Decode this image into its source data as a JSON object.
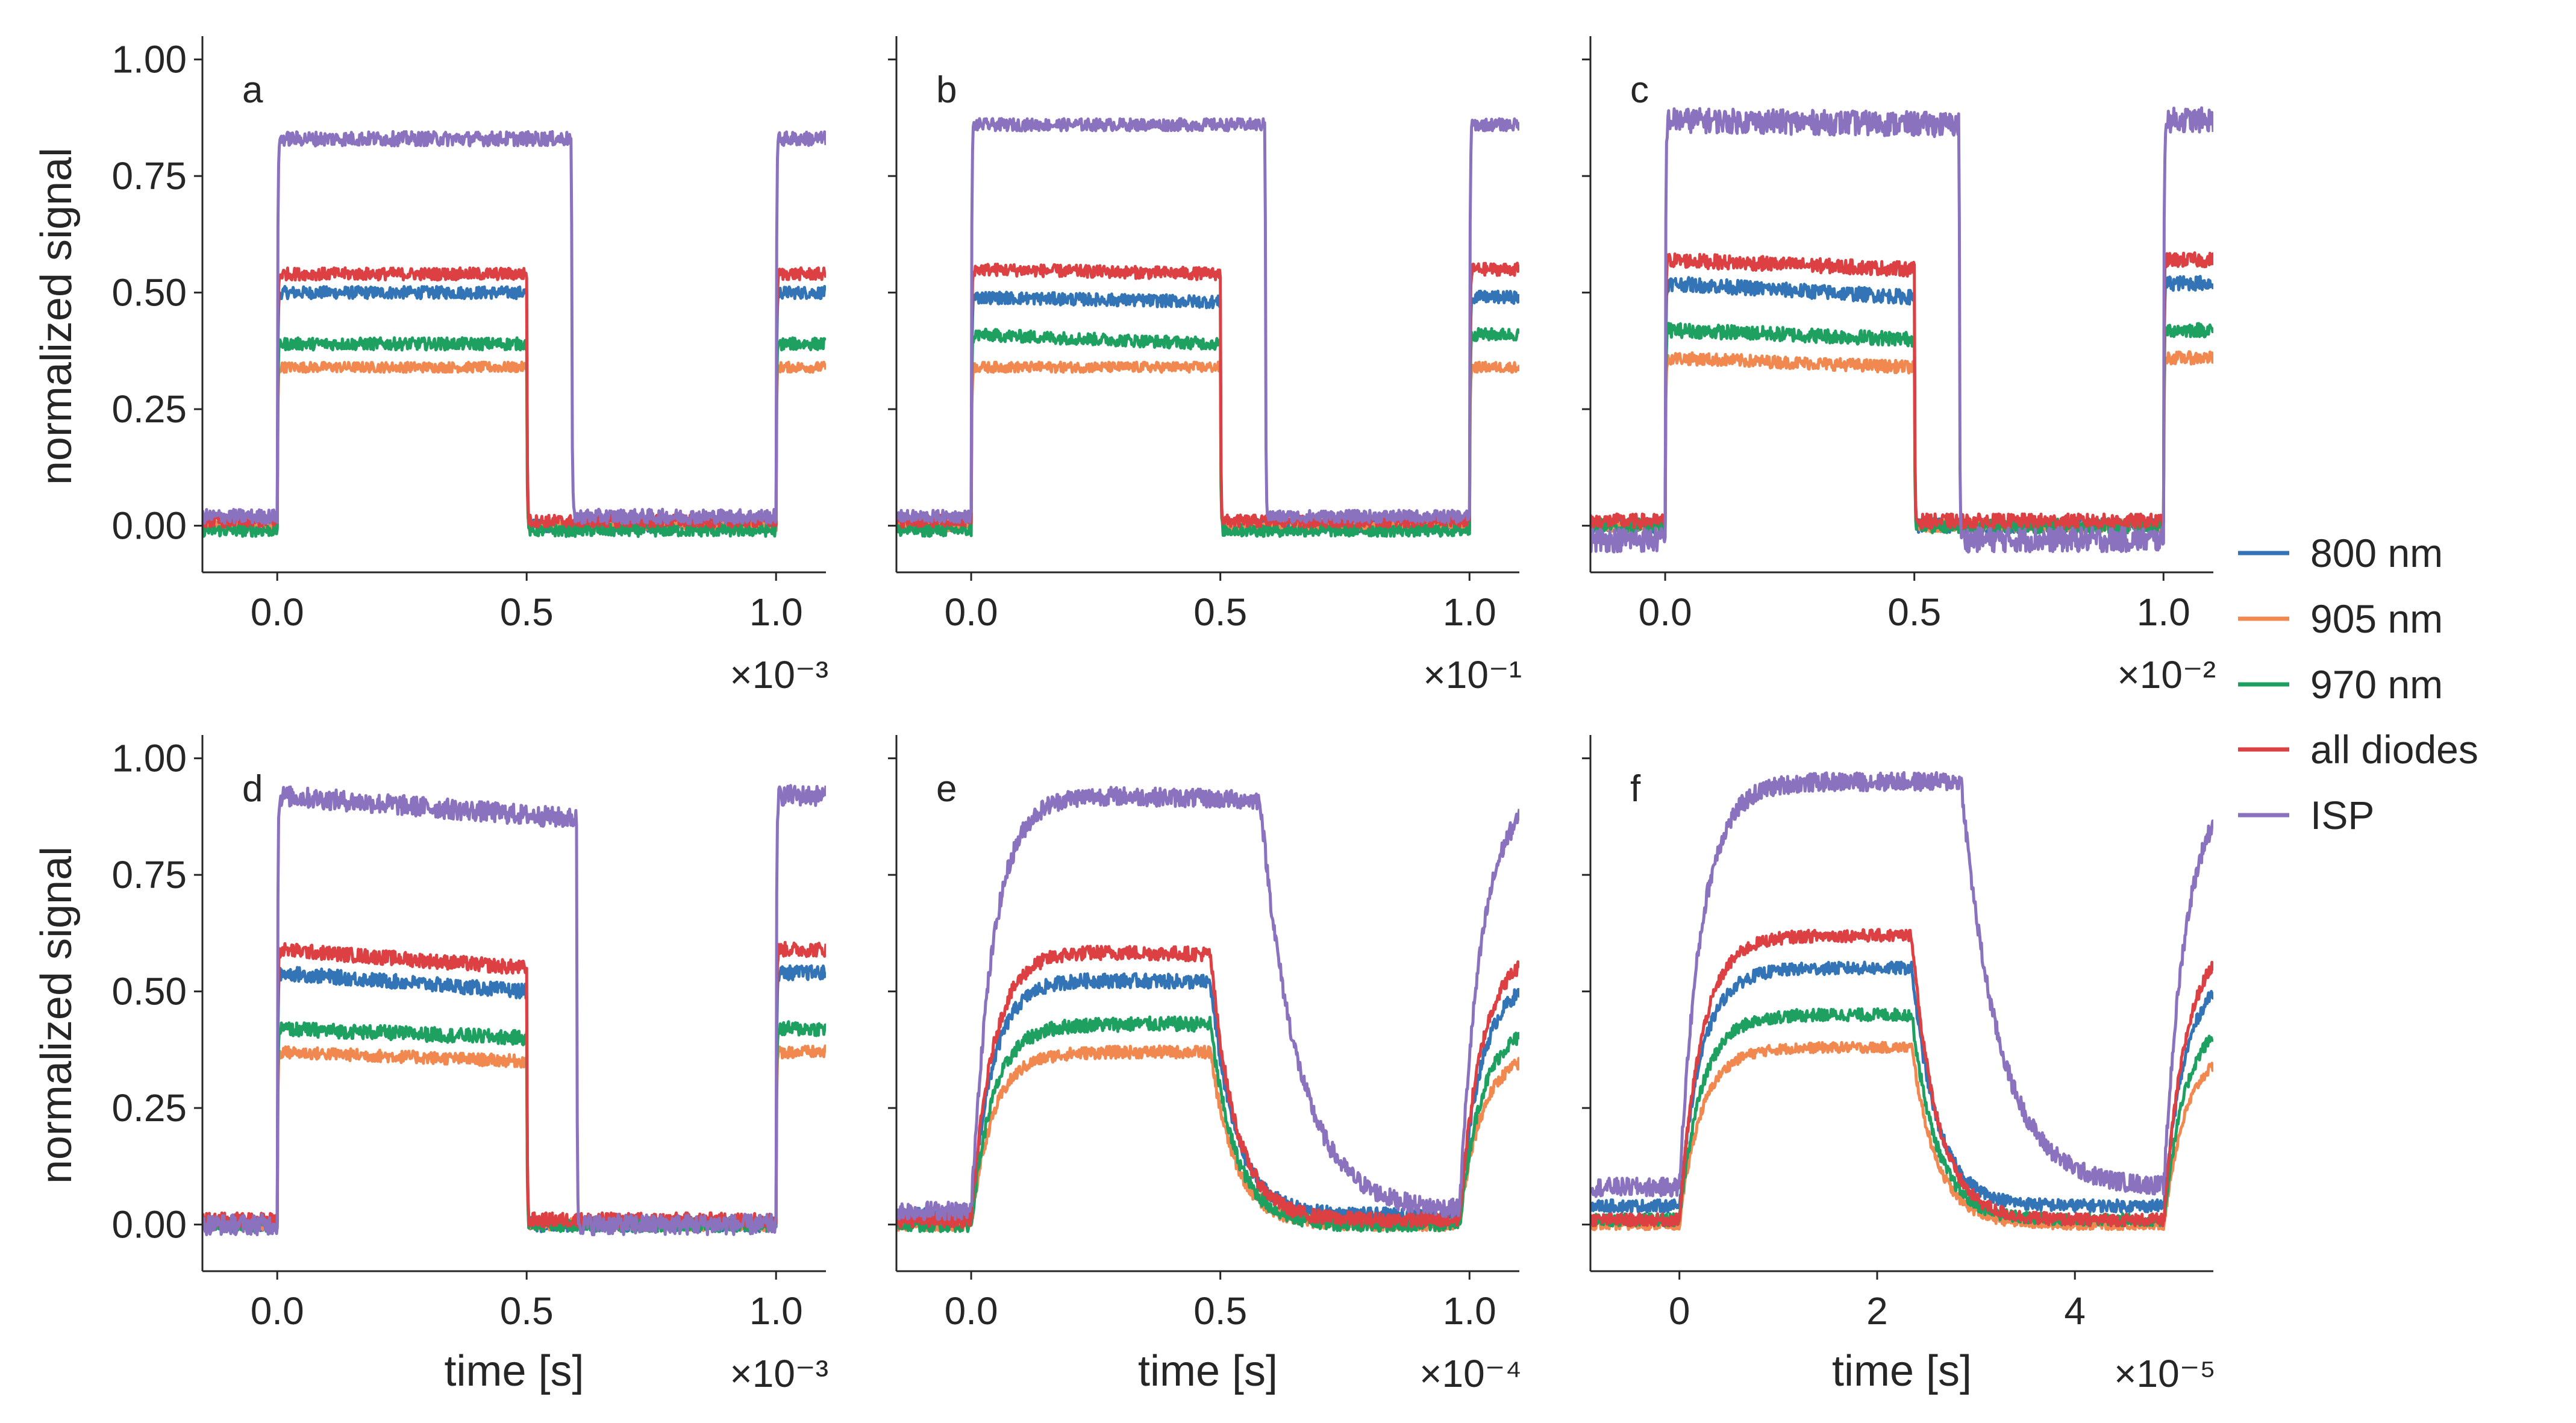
{
  "figure": {
    "ylabel": "normalized signal",
    "xlabel": "time [s]",
    "colors": {
      "800 nm": "#3274b5",
      "905 nm": "#f0884f",
      "970 nm": "#1ea160",
      "all diodes": "#dc4043",
      "ISP": "#8a72bf"
    },
    "legend_position": "right-middle"
  },
  "legend": {
    "items": [
      {
        "label": "800 nm",
        "color": "#3274b5"
      },
      {
        "label": "905 nm",
        "color": "#f0884f"
      },
      {
        "label": "970 nm",
        "color": "#1ea160"
      },
      {
        "label": "all diodes",
        "color": "#dc4043"
      },
      {
        "label": "ISP",
        "color": "#8a72bf"
      }
    ]
  },
  "chart_data": [
    {
      "panel": "a",
      "type": "line",
      "xlim": [
        -0.15,
        1.1
      ],
      "ylim": [
        -0.1,
        1.05
      ],
      "xticks": [
        "0.0",
        "0.5",
        "1.0"
      ],
      "xtick_values": [
        0,
        0.5,
        1.0
      ],
      "multiplier": "×10⁻³",
      "yticks": [
        "0.00",
        "0.25",
        "0.50",
        "0.75",
        "1.00"
      ],
      "ytick_values": [
        0,
        0.25,
        0.5,
        0.75,
        1.0
      ],
      "on_time": 0.0,
      "diode_off_time": 0.5,
      "isp_off_time": 0.59,
      "repeat_on": 1.0,
      "series": [
        {
          "name": "800 nm",
          "low": 0.0,
          "high_start": 0.5,
          "high_end": 0.5,
          "noise": 0.012
        },
        {
          "name": "905 nm",
          "low": 0.0,
          "high_start": 0.34,
          "high_end": 0.34,
          "noise": 0.01
        },
        {
          "name": "970 nm",
          "low": -0.01,
          "high_start": 0.39,
          "high_end": 0.39,
          "noise": 0.012
        },
        {
          "name": "all diodes",
          "low": 0.01,
          "high_start": 0.54,
          "high_end": 0.54,
          "noise": 0.012
        },
        {
          "name": "ISP",
          "low": 0.02,
          "high_start": 0.83,
          "high_end": 0.83,
          "noise": 0.014
        }
      ]
    },
    {
      "panel": "b",
      "type": "line",
      "xlim": [
        -0.15,
        1.1
      ],
      "ylim": [
        -0.1,
        1.05
      ],
      "xticks": [
        "0.0",
        "0.5",
        "1.0"
      ],
      "xtick_values": [
        0,
        0.5,
        1.0
      ],
      "multiplier": "×10⁻¹",
      "yticks": [
        "0.00",
        "0.25",
        "0.50",
        "0.75",
        "1.00"
      ],
      "ytick_values": [
        0,
        0.25,
        0.5,
        0.75,
        1.0
      ],
      "on_time": 0.0,
      "diode_off_time": 0.5,
      "isp_off_time": 0.59,
      "repeat_on": 1.0,
      "series": [
        {
          "name": "800 nm",
          "low": 0.0,
          "high_start": 0.49,
          "high_end": 0.48,
          "noise": 0.012
        },
        {
          "name": "905 nm",
          "low": 0.0,
          "high_start": 0.34,
          "high_end": 0.34,
          "noise": 0.01
        },
        {
          "name": "970 nm",
          "low": -0.01,
          "high_start": 0.41,
          "high_end": 0.39,
          "noise": 0.012
        },
        {
          "name": "all diodes",
          "low": 0.01,
          "high_start": 0.55,
          "high_end": 0.54,
          "noise": 0.012
        },
        {
          "name": "ISP",
          "low": 0.02,
          "high_start": 0.86,
          "high_end": 0.86,
          "noise": 0.012
        }
      ]
    },
    {
      "panel": "c",
      "type": "line",
      "xlim": [
        -0.15,
        1.1
      ],
      "ylim": [
        -0.1,
        1.05
      ],
      "xticks": [
        "0.0",
        "0.5",
        "1.0"
      ],
      "xtick_values": [
        0,
        0.5,
        1.0
      ],
      "multiplier": "×10⁻²",
      "yticks": [
        "0.00",
        "0.25",
        "0.50",
        "0.75",
        "1.00"
      ],
      "ytick_values": [
        0,
        0.25,
        0.5,
        0.75,
        1.0
      ],
      "on_time": 0.0,
      "diode_off_time": 0.5,
      "isp_off_time": 0.59,
      "repeat_on": 1.0,
      "series": [
        {
          "name": "800 nm",
          "low": 0.0,
          "high_start": 0.52,
          "high_end": 0.49,
          "noise": 0.014
        },
        {
          "name": "905 nm",
          "low": 0.0,
          "high_start": 0.36,
          "high_end": 0.34,
          "noise": 0.012
        },
        {
          "name": "970 nm",
          "low": 0.0,
          "high_start": 0.42,
          "high_end": 0.4,
          "noise": 0.014
        },
        {
          "name": "all diodes",
          "low": 0.01,
          "high_start": 0.57,
          "high_end": 0.55,
          "noise": 0.014
        },
        {
          "name": "ISP",
          "low": -0.03,
          "high_start": 0.87,
          "high_end": 0.86,
          "noise": 0.024
        }
      ]
    },
    {
      "panel": "d",
      "type": "line",
      "xlim": [
        -0.15,
        1.1
      ],
      "ylim": [
        -0.1,
        1.05
      ],
      "xticks": [
        "0.0",
        "0.5",
        "1.0"
      ],
      "xtick_values": [
        0,
        0.5,
        1.0
      ],
      "multiplier": "×10⁻³",
      "yticks": [
        "0.00",
        "0.25",
        "0.50",
        "0.75",
        "1.00"
      ],
      "ytick_values": [
        0,
        0.25,
        0.5,
        0.75,
        1.0
      ],
      "on_time": 0.0,
      "diode_off_time": 0.5,
      "isp_off_time": 0.6,
      "repeat_on": 1.0,
      "series": [
        {
          "name": "800 nm",
          "low": 0.0,
          "high_start": 0.54,
          "high_end": 0.5,
          "noise": 0.014
        },
        {
          "name": "905 nm",
          "low": 0.0,
          "high_start": 0.37,
          "high_end": 0.35,
          "noise": 0.012
        },
        {
          "name": "970 nm",
          "low": 0.0,
          "high_start": 0.42,
          "high_end": 0.4,
          "noise": 0.014
        },
        {
          "name": "all diodes",
          "low": 0.01,
          "high_start": 0.59,
          "high_end": 0.55,
          "noise": 0.014
        },
        {
          "name": "ISP",
          "low": 0.0,
          "high_start": 0.92,
          "high_end": 0.87,
          "noise": 0.02
        }
      ]
    },
    {
      "panel": "e",
      "type": "line",
      "xlim": [
        -0.15,
        1.1
      ],
      "ylim": [
        -0.1,
        1.05
      ],
      "xticks": [
        "0.0",
        "0.5",
        "1.0"
      ],
      "xtick_values": [
        0,
        0.5,
        1.0
      ],
      "multiplier": "×10⁻⁴",
      "yticks": [
        "0.00",
        "0.25",
        "0.50",
        "0.75",
        "1.00"
      ],
      "ytick_values": [
        0,
        0.25,
        0.5,
        0.75,
        1.0
      ],
      "on_time": 0.0,
      "diode_off_time": 0.48,
      "isp_off_time": 0.58,
      "repeat_on": 0.98,
      "series": [
        {
          "name": "800 nm",
          "low": 0.02,
          "high_start": 0.53,
          "high_end": 0.52,
          "noise": 0.014
        },
        {
          "name": "905 nm",
          "low": 0.0,
          "high_start": 0.37,
          "high_end": 0.37,
          "noise": 0.012
        },
        {
          "name": "970 nm",
          "low": 0.0,
          "high_start": 0.43,
          "high_end": 0.43,
          "noise": 0.014
        },
        {
          "name": "all diodes",
          "low": 0.01,
          "high_start": 0.59,
          "high_end": 0.58,
          "noise": 0.014
        },
        {
          "name": "ISP",
          "low": 0.03,
          "high_start": 0.93,
          "high_end": 0.91,
          "noise": 0.018
        }
      ]
    },
    {
      "panel": "f",
      "type": "line",
      "xlim": [
        -0.9,
        5.4
      ],
      "ylim": [
        -0.1,
        1.05
      ],
      "xticks": [
        "0",
        "2",
        "4"
      ],
      "xtick_values": [
        0,
        2,
        4
      ],
      "multiplier": "×10⁻⁵",
      "yticks": [
        "0.00",
        "0.25",
        "0.50",
        "0.75",
        "1.00"
      ],
      "ytick_values": [
        0,
        0.25,
        0.5,
        0.75,
        1.0
      ],
      "on_time": 0.0,
      "diode_off_time": 2.35,
      "isp_off_time": 2.85,
      "repeat_on": 4.9,
      "series": [
        {
          "name": "800 nm",
          "low": 0.04,
          "high_start": 0.55,
          "high_end": 0.55,
          "noise": 0.012
        },
        {
          "name": "905 nm",
          "low": 0.0,
          "high_start": 0.38,
          "high_end": 0.38,
          "noise": 0.01
        },
        {
          "name": "970 nm",
          "low": 0.01,
          "high_start": 0.45,
          "high_end": 0.45,
          "noise": 0.012
        },
        {
          "name": "all diodes",
          "low": 0.01,
          "high_start": 0.62,
          "high_end": 0.62,
          "noise": 0.012
        },
        {
          "name": "ISP",
          "low": 0.08,
          "high_start": 0.95,
          "high_end": 0.95,
          "noise": 0.018
        }
      ]
    }
  ]
}
